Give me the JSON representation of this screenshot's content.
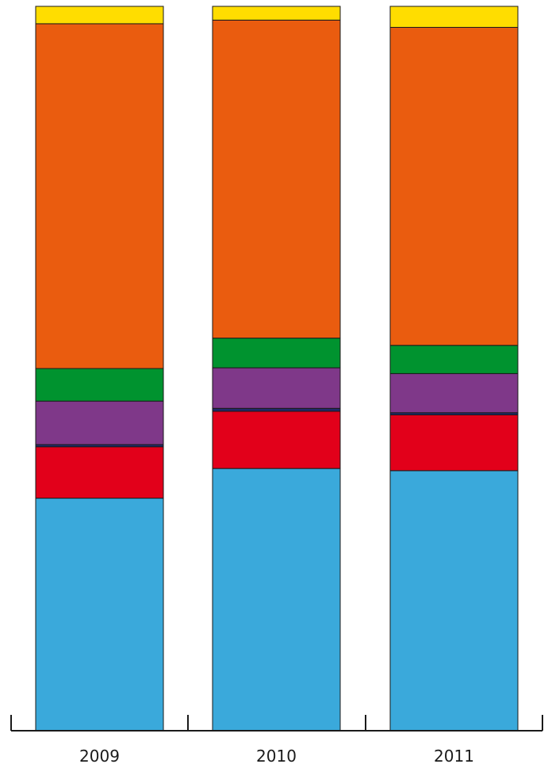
{
  "chart_data": {
    "type": "bar",
    "stacked": true,
    "normalized": true,
    "categories": [
      "2009",
      "2010",
      "2011"
    ],
    "ylim": [
      0,
      100
    ],
    "grid": false,
    "legend": "none",
    "series": [
      {
        "color": "#3aa9db",
        "values": [
          32.1,
          36.2,
          35.9
        ]
      },
      {
        "color": "#e2001a",
        "values": [
          7.1,
          7.9,
          7.7
        ]
      },
      {
        "color": "#1f2a6b",
        "values": [
          0.3,
          0.4,
          0.3
        ]
      },
      {
        "color": "#7f3889",
        "values": [
          6.0,
          5.6,
          5.4
        ]
      },
      {
        "color": "#00932f",
        "values": [
          4.5,
          4.1,
          3.9
        ]
      },
      {
        "color": "#ea5c0f",
        "values": [
          47.6,
          43.9,
          43.9
        ]
      },
      {
        "color": "#ffdd00",
        "values": [
          2.4,
          1.9,
          2.9
        ]
      }
    ]
  }
}
